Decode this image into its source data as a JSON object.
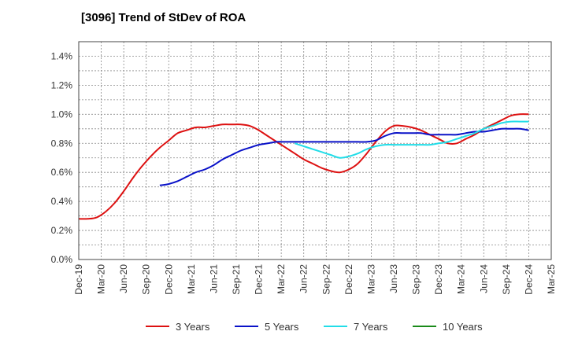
{
  "chart_data": {
    "type": "line",
    "title": "[3096]  Trend of StDev of ROA",
    "xlabel": "",
    "ylabel": "",
    "ylim": [
      0,
      0.015
    ],
    "y_ticks": [
      "0.0%",
      "0.2%",
      "0.4%",
      "0.6%",
      "0.8%",
      "1.0%",
      "1.2%",
      "1.4%"
    ],
    "y_tick_values": [
      0,
      0.002,
      0.004,
      0.006,
      0.008,
      0.01,
      0.012,
      0.014
    ],
    "x_ticks": [
      "Dec-19",
      "Mar-20",
      "Jun-20",
      "Sep-20",
      "Dec-20",
      "Mar-21",
      "Jun-21",
      "Sep-21",
      "Dec-21",
      "Mar-22",
      "Jun-22",
      "Sep-22",
      "Dec-22",
      "Mar-23",
      "Jun-23",
      "Sep-23",
      "Dec-23",
      "Mar-24",
      "Jun-24",
      "Sep-24",
      "Dec-24",
      "Mar-25"
    ],
    "grid": true,
    "legend_position": "bottom",
    "series": [
      {
        "name": "3 Years",
        "color": "#dd1111",
        "values": [
          0.0028,
          0.0028,
          0.0029,
          0.0033,
          0.0039,
          0.0047,
          0.0056,
          0.0064,
          0.0071,
          0.0077,
          0.0082,
          0.0087,
          0.0089,
          0.0091,
          0.0091,
          0.0092,
          0.0093,
          0.0093,
          0.0093,
          0.0092,
          0.0089,
          0.0085,
          0.0081,
          0.0077,
          0.0073,
          0.0069,
          0.0066,
          0.0063,
          0.0061,
          0.006,
          0.0062,
          0.0066,
          0.0073,
          0.0081,
          0.0088,
          0.0092,
          0.0092,
          0.0091,
          0.0089,
          0.0086,
          0.0083,
          0.008,
          0.008,
          0.0083,
          0.0086,
          0.009,
          0.0093,
          0.0096,
          0.0099,
          0.01,
          0.01
        ]
      },
      {
        "name": "5 Years",
        "color": "#0a12c8",
        "values": [
          null,
          null,
          null,
          null,
          null,
          null,
          null,
          null,
          null,
          0.0051,
          0.0052,
          0.0054,
          0.0057,
          0.006,
          0.0062,
          0.0065,
          0.0069,
          0.0072,
          0.0075,
          0.0077,
          0.0079,
          0.008,
          0.0081,
          0.0081,
          0.0081,
          0.0081,
          0.0081,
          0.0081,
          0.0081,
          0.0081,
          0.0081,
          0.0081,
          0.0081,
          0.0082,
          0.0085,
          0.0087,
          0.0087,
          0.0087,
          0.0087,
          0.0086,
          0.0086,
          0.0086,
          0.0086,
          0.0087,
          0.0088,
          0.0088,
          0.0089,
          0.009,
          0.009,
          0.009,
          0.0089
        ]
      },
      {
        "name": "7 Years",
        "color": "#22dde8",
        "values": [
          null,
          null,
          null,
          null,
          null,
          null,
          null,
          null,
          null,
          null,
          null,
          null,
          null,
          null,
          null,
          null,
          null,
          null,
          null,
          null,
          null,
          null,
          null,
          null,
          0.008,
          0.0078,
          0.0076,
          0.0074,
          0.0072,
          0.007,
          0.0071,
          0.0073,
          0.0076,
          0.0078,
          0.0079,
          0.0079,
          0.0079,
          0.0079,
          0.0079,
          0.0079,
          0.008,
          0.0081,
          0.0083,
          0.0085,
          0.0087,
          0.009,
          0.0092,
          0.0094,
          0.0095,
          0.0095,
          0.0095
        ]
      },
      {
        "name": "10 Years",
        "color": "#1a8a1a",
        "values": []
      }
    ]
  }
}
